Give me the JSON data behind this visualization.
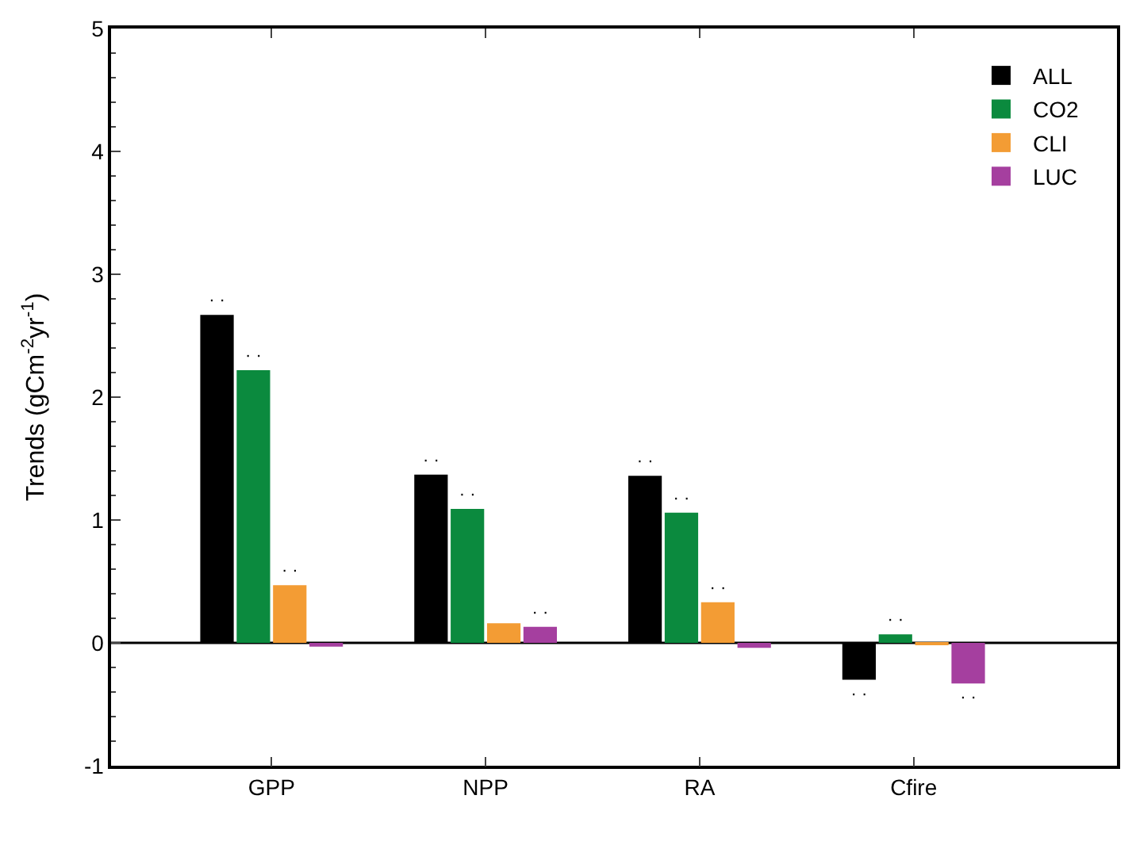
{
  "chart_data": {
    "type": "bar",
    "ylabel": "Trends (gCm$^{-2}$yr$^{-1}$)",
    "categories": [
      "GPP",
      "NPP",
      "RA",
      "Cfire"
    ],
    "series": [
      {
        "name": "ALL",
        "color": "#000000",
        "values": [
          2.67,
          1.37,
          1.36,
          -0.3
        ],
        "value_labels": [
          "· ·",
          "· ·",
          "· ·",
          "· ·"
        ]
      },
      {
        "name": "CO2",
        "color": "#0b8a3e",
        "values": [
          2.22,
          1.09,
          1.06,
          0.07
        ],
        "value_labels": [
          "· ·",
          "· ·",
          "· ·",
          "· ·"
        ]
      },
      {
        "name": "CLI",
        "color": "#f39c34",
        "values": [
          0.47,
          0.16,
          0.33,
          -0.02
        ],
        "value_labels": [
          "· ·",
          null,
          "· ·",
          null
        ]
      },
      {
        "name": "LUC",
        "color": "#a53f9f",
        "values": [
          -0.03,
          0.13,
          -0.04,
          -0.33
        ],
        "value_labels": [
          null,
          "· ·",
          null,
          "· ·"
        ]
      }
    ],
    "ylim": [
      -1,
      5
    ],
    "yticks": [
      -1,
      0,
      1,
      2,
      3,
      4,
      5
    ],
    "ref_lines": [
      {
        "axis": "y",
        "value": 0,
        "color": "#000000"
      }
    ],
    "legend": "top right"
  }
}
